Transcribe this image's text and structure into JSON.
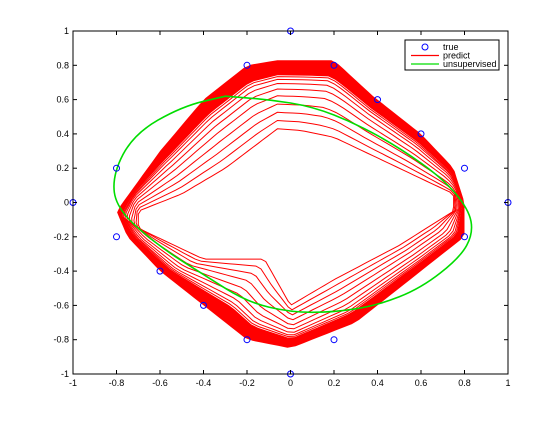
{
  "colors": {
    "true": "#0000ff",
    "predict": "#ff0000",
    "unsupervised": "#00dd00",
    "axes": "#000000",
    "background": "#ffffff"
  },
  "chart_data": {
    "type": "scatter",
    "title": "",
    "xlabel": "",
    "ylabel": "",
    "xlim": [
      -1,
      1
    ],
    "ylim": [
      -1,
      1
    ],
    "grid": false,
    "legend_position": "top-right",
    "xticks": [
      -1,
      -0.8,
      -0.6,
      -0.4,
      -0.2,
      0,
      0.2,
      0.4,
      0.6,
      0.8,
      1
    ],
    "yticks": [
      -1,
      -0.8,
      -0.6,
      -0.4,
      -0.2,
      0,
      0.2,
      0.4,
      0.6,
      0.8,
      1
    ],
    "xtick_labels": [
      "-1",
      "-0.8",
      "-0.6",
      "-0.4",
      "-0.2",
      "0",
      "0.2",
      "0.4",
      "0.6",
      "0.8",
      "1"
    ],
    "ytick_labels": [
      "-1",
      "-0.8",
      "-0.6",
      "-0.4",
      "-0.2",
      "0",
      "0.2",
      "0.4",
      "0.6",
      "0.8",
      "1"
    ],
    "series": [
      {
        "name": "true",
        "kind": "markers",
        "marker": "circle",
        "x": [
          0,
          0.2,
          0.4,
          0.6,
          0.8,
          1,
          0.8,
          0.2,
          0,
          -0.2,
          -0.4,
          -0.6,
          -0.8,
          -1,
          -0.8,
          -0.2
        ],
        "y": [
          1,
          0.8,
          0.6,
          0.4,
          0.2,
          0,
          -0.2,
          -0.8,
          -1,
          -0.8,
          -0.6,
          -0.4,
          -0.2,
          0,
          0.2,
          0.8
        ]
      },
      {
        "name": "predict",
        "kind": "line-family",
        "x": [
          -0.06,
          0.2,
          0.38,
          0.6,
          0.75,
          0.8,
          0.8,
          0.6,
          0.3,
          0.0,
          -0.2,
          -0.4,
          -0.6,
          -0.75,
          -0.8,
          -0.6,
          -0.4,
          -0.2,
          -0.06
        ],
        "y_outer": [
          0.83,
          0.83,
          0.62,
          0.4,
          0.2,
          0.0,
          -0.2,
          -0.4,
          -0.7,
          -0.85,
          -0.8,
          -0.6,
          -0.4,
          -0.2,
          -0.05,
          0.3,
          0.6,
          0.8,
          0.83
        ],
        "inner_x": [
          -0.06,
          0.05,
          0.2,
          0.5,
          0.75,
          0.75,
          0.5,
          0.2,
          0.0,
          -0.12,
          -0.4,
          -0.7,
          -0.7,
          -0.5,
          -0.3,
          -0.06
        ],
        "inner_y": [
          0.43,
          0.42,
          0.38,
          0.2,
          0.05,
          -0.05,
          -0.25,
          -0.45,
          -0.6,
          -0.33,
          -0.33,
          -0.15,
          -0.05,
          0.05,
          0.2,
          0.43
        ]
      },
      {
        "name": "unsupervised",
        "kind": "curve",
        "x": [
          -0.3,
          -0.1,
          0.1,
          0.3,
          0.5,
          0.7,
          0.82,
          0.84,
          0.78,
          0.6,
          0.4,
          0.2,
          0.0,
          -0.2,
          -0.4,
          -0.6,
          -0.8,
          -0.82,
          -0.72,
          -0.5,
          -0.3
        ],
        "y": [
          0.62,
          0.6,
          0.56,
          0.46,
          0.32,
          0.14,
          -0.04,
          -0.18,
          -0.32,
          -0.5,
          -0.6,
          -0.64,
          -0.64,
          -0.58,
          -0.42,
          -0.26,
          -0.04,
          0.16,
          0.4,
          0.56,
          0.62
        ]
      }
    ]
  }
}
